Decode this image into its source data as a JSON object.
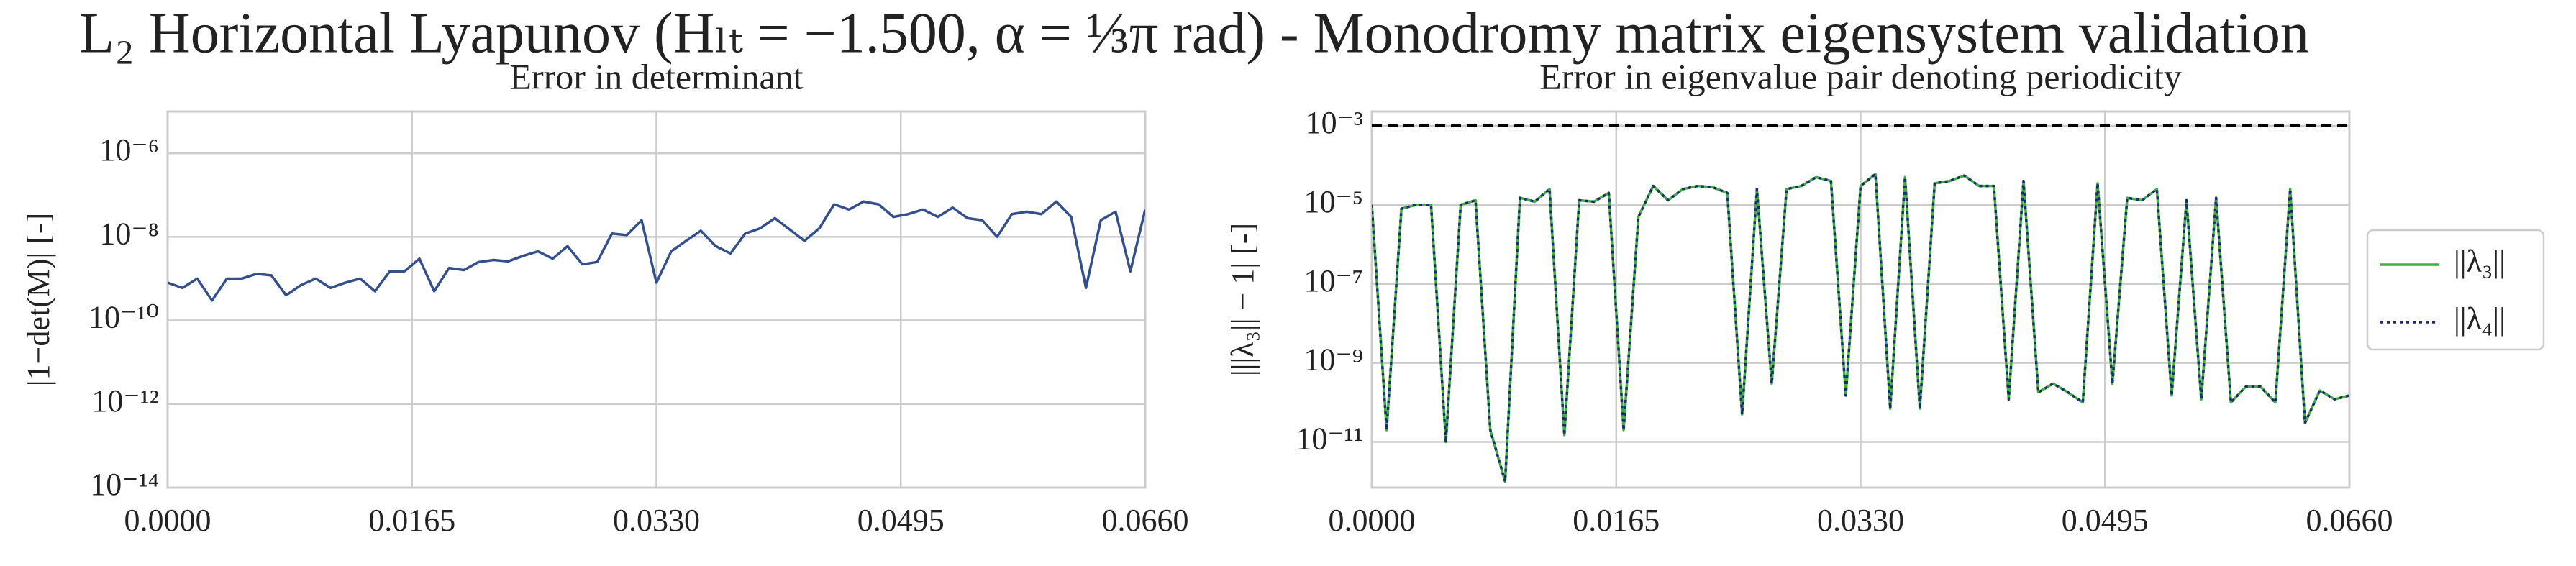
{
  "title": "L₂ Horizontal Lyapunov (Hₗₜ = −1.500, α = ⅓π rad) - Monodromy matrix eigensystem validation",
  "chart_data": [
    {
      "type": "line",
      "title": "Error in determinant",
      "ylabel": "|1−det(M)| [-]",
      "yscale": "log",
      "grid": true,
      "x": [
        0,
        0.001,
        0.002,
        0.003,
        0.004,
        0.005,
        0.006,
        0.007,
        0.008,
        0.009,
        0.01,
        0.011,
        0.012,
        0.013,
        0.014,
        0.015,
        0.016,
        0.017,
        0.018,
        0.019,
        0.02,
        0.021,
        0.022,
        0.023,
        0.024,
        0.025,
        0.026,
        0.027,
        0.028,
        0.029,
        0.03,
        0.031,
        0.032,
        0.033,
        0.034,
        0.035,
        0.036,
        0.037,
        0.038,
        0.039,
        0.04,
        0.041,
        0.042,
        0.043,
        0.044,
        0.045,
        0.046,
        0.047,
        0.048,
        0.049,
        0.05,
        0.051,
        0.052,
        0.053,
        0.054,
        0.055,
        0.056,
        0.057,
        0.058,
        0.059,
        0.06,
        0.061,
        0.062,
        0.063,
        0.064,
        0.065,
        0.066
      ],
      "series": [
        {
          "name": "|1−det(M)|",
          "color": "#34508c",
          "style": "solid",
          "values": [
            8e-10,
            6e-10,
            1e-09,
            3e-10,
            1e-09,
            1e-09,
            1.3e-09,
            1.2e-09,
            4e-10,
            7e-10,
            1e-09,
            6e-10,
            8e-10,
            1e-09,
            5e-10,
            1.5e-09,
            1.5e-09,
            3e-09,
            5e-10,
            1.8e-09,
            1.6e-09,
            2.5e-09,
            2.8e-09,
            2.6e-09,
            3.5e-09,
            4.5e-09,
            3e-09,
            6e-09,
            2.2e-09,
            2.5e-09,
            1.2e-08,
            1.1e-08,
            2.5e-08,
            8e-10,
            4.5e-09,
            8e-09,
            1.4e-08,
            6e-09,
            4e-09,
            1.2e-08,
            1.6e-08,
            2.8e-08,
            1.5e-08,
            8e-09,
            1.6e-08,
            6e-08,
            4.5e-08,
            7e-08,
            6e-08,
            3e-08,
            3.5e-08,
            4.5e-08,
            3e-08,
            5e-08,
            2.8e-08,
            2.5e-08,
            1e-08,
            3.5e-08,
            4e-08,
            3.5e-08,
            7e-08,
            3e-08,
            6e-10,
            2.5e-08,
            4e-08,
            1.5e-09,
            4.5e-08
          ]
        }
      ],
      "xlim": [
        0,
        0.066
      ],
      "xticks": [
        {
          "value": 0,
          "label": "0.0000"
        },
        {
          "value": 0.0165,
          "label": "0.0165"
        },
        {
          "value": 0.033,
          "label": "0.0330"
        },
        {
          "value": 0.0495,
          "label": "0.0495"
        },
        {
          "value": 0.066,
          "label": "0.0660"
        }
      ],
      "ylim": [
        1e-14,
        1e-05
      ],
      "yticks": [
        {
          "value": 1e-14,
          "label": "10⁻¹⁴"
        },
        {
          "value": 1e-12,
          "label": "10⁻¹²"
        },
        {
          "value": 1e-10,
          "label": "10⁻¹⁰"
        },
        {
          "value": 1e-08,
          "label": "10⁻⁸"
        },
        {
          "value": 1e-06,
          "label": "10⁻⁶"
        }
      ]
    },
    {
      "type": "line",
      "title": "Error in eigenvalue pair denoting periodicity",
      "ylabel": "|||λ₃|| − 1| [-]",
      "yscale": "log",
      "grid": true,
      "legend": "outside-right",
      "hline": {
        "value": 0.001,
        "color": "#000000"
      },
      "x": [
        0,
        0.001,
        0.002,
        0.003,
        0.004,
        0.005,
        0.006,
        0.007,
        0.008,
        0.009,
        0.01,
        0.011,
        0.012,
        0.013,
        0.014,
        0.015,
        0.016,
        0.017,
        0.018,
        0.019,
        0.02,
        0.021,
        0.022,
        0.023,
        0.024,
        0.025,
        0.026,
        0.027,
        0.028,
        0.029,
        0.03,
        0.031,
        0.032,
        0.033,
        0.034,
        0.035,
        0.036,
        0.037,
        0.038,
        0.039,
        0.04,
        0.041,
        0.042,
        0.043,
        0.044,
        0.045,
        0.046,
        0.047,
        0.048,
        0.049,
        0.05,
        0.051,
        0.052,
        0.053,
        0.054,
        0.055,
        0.056,
        0.057,
        0.058,
        0.059,
        0.06,
        0.061,
        0.062,
        0.063,
        0.064,
        0.065,
        0.066
      ],
      "series": [
        {
          "name": "||λ₃||",
          "color": "#3cb043",
          "style": "solid",
          "values": [
            1e-05,
            2e-11,
            8e-06,
            1e-05,
            1e-05,
            1e-11,
            1e-05,
            1.3e-05,
            2e-11,
            1e-12,
            1.5e-05,
            1.2e-05,
            2.5e-05,
            1.5e-11,
            1.3e-05,
            1.2e-05,
            2e-05,
            2e-11,
            5e-06,
            3e-05,
            1.3e-05,
            2.5e-05,
            3e-05,
            2.8e-05,
            2e-05,
            5e-11,
            2.5e-05,
            3e-10,
            2.5e-05,
            3e-05,
            5e-05,
            4e-05,
            1.5e-10,
            3e-05,
            6e-05,
            7e-11,
            5e-05,
            7e-11,
            3.5e-05,
            4e-05,
            5.5e-05,
            3e-05,
            3e-05,
            1.2e-10,
            4e-05,
            1.8e-10,
            3e-10,
            1.8e-10,
            1e-10,
            3.5e-05,
            3e-10,
            1.5e-05,
            1.3e-05,
            2.5e-05,
            1.5e-10,
            1.3e-05,
            1.2e-10,
            1.5e-05,
            1e-10,
            2.5e-10,
            2.5e-10,
            1e-10,
            2.5e-05,
            3e-11,
            2e-10,
            1.2e-10,
            1.5e-10
          ]
        },
        {
          "name": "||λ₄||",
          "color": "#1f2a6b",
          "style": "dotted",
          "values": [
            1e-05,
            2e-11,
            8e-06,
            1e-05,
            1e-05,
            1e-11,
            1e-05,
            1.3e-05,
            2e-11,
            1e-12,
            1.5e-05,
            1.2e-05,
            2.5e-05,
            1.5e-11,
            1.3e-05,
            1.2e-05,
            2e-05,
            2e-11,
            5e-06,
            3e-05,
            1.3e-05,
            2.5e-05,
            3e-05,
            2.8e-05,
            2e-05,
            5e-11,
            2.5e-05,
            3e-10,
            2.5e-05,
            3e-05,
            5e-05,
            4e-05,
            1.5e-10,
            3e-05,
            6e-05,
            7e-11,
            5e-05,
            7e-11,
            3.5e-05,
            4e-05,
            5.5e-05,
            3e-05,
            3e-05,
            1.2e-10,
            4e-05,
            1.8e-10,
            3e-10,
            1.8e-10,
            1e-10,
            3.5e-05,
            3e-10,
            1.5e-05,
            1.3e-05,
            2.5e-05,
            1.5e-10,
            1.3e-05,
            1.2e-10,
            1.5e-05,
            1e-10,
            2.5e-10,
            2.5e-10,
            1e-10,
            2.5e-05,
            3e-11,
            2e-10,
            1.2e-10,
            1.5e-10
          ]
        }
      ],
      "xlim": [
        0,
        0.066
      ],
      "xticks": [
        {
          "value": 0,
          "label": "0.0000"
        },
        {
          "value": 0.0165,
          "label": "0.0165"
        },
        {
          "value": 0.033,
          "label": "0.0330"
        },
        {
          "value": 0.0495,
          "label": "0.0495"
        },
        {
          "value": 0.066,
          "label": "0.0660"
        }
      ],
      "ylim": [
        7e-13,
        0.0023
      ],
      "yticks": [
        {
          "value": 1e-11,
          "label": "10⁻¹¹"
        },
        {
          "value": 1e-09,
          "label": "10⁻⁹"
        },
        {
          "value": 1e-07,
          "label": "10⁻⁷"
        },
        {
          "value": 1e-05,
          "label": "10⁻⁵"
        },
        {
          "value": 0.001,
          "label": "10⁻³"
        }
      ]
    }
  ]
}
